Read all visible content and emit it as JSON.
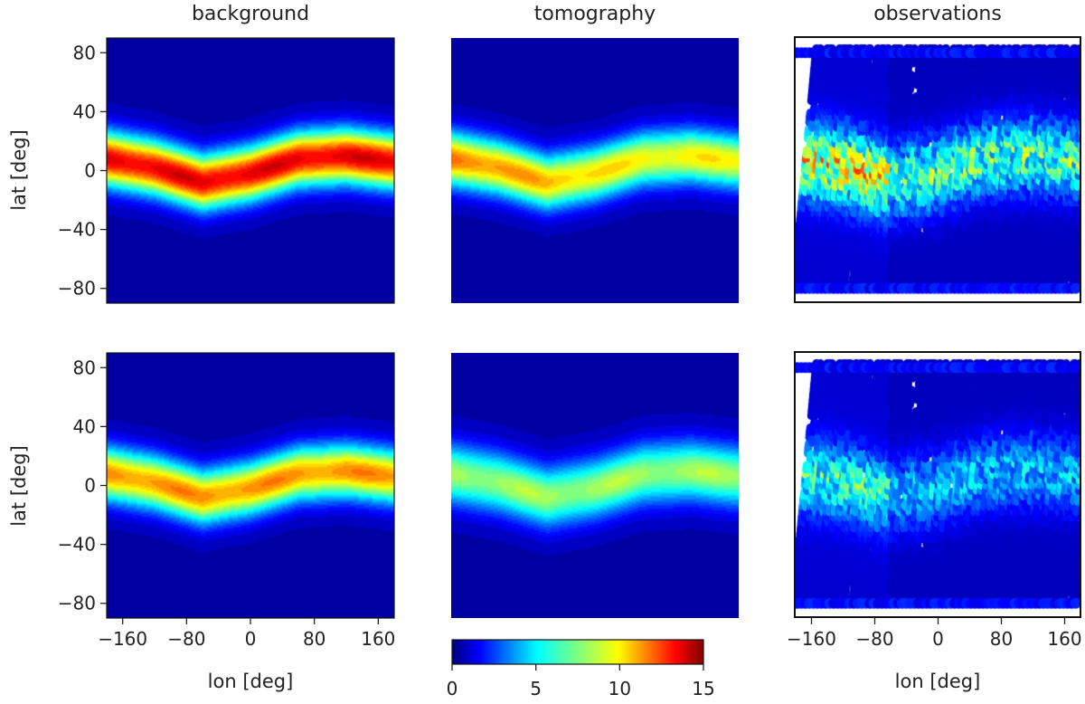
{
  "chart_data": {
    "type": "heatmap",
    "columns": [
      "background",
      "tomography",
      "observations"
    ],
    "rows": 2,
    "xlabel": "lon [deg]",
    "ylabel": "lat [deg]",
    "xlim": [
      -180,
      180
    ],
    "ylim": [
      -90,
      90
    ],
    "xticks": [
      -160,
      -80,
      0,
      80,
      160
    ],
    "yticks": [
      80,
      40,
      0,
      -40,
      -80
    ],
    "xtick_labels": [
      "−160",
      "−80",
      "0",
      "80",
      "160"
    ],
    "ytick_labels": [
      "80",
      "40",
      "0",
      "−40",
      "−80"
    ],
    "colormap": "jet",
    "colorbar": {
      "range": [
        0,
        15
      ],
      "ticks": [
        0,
        5,
        10,
        15
      ],
      "tick_labels": [
        "0",
        "5",
        "10",
        "15"
      ]
    },
    "band_center_lat": {
      "lon": [
        -180,
        -120,
        -60,
        0,
        60,
        120,
        180
      ],
      "lat": [
        8,
        2,
        -8,
        -2,
        8,
        10,
        6
      ]
    },
    "panels": [
      {
        "row": 1,
        "column": "background",
        "peak": 13.5,
        "band_width_deg": 36,
        "background_level": 0.6
      },
      {
        "row": 1,
        "column": "tomography",
        "peak": 11.5,
        "band_width_deg": 36,
        "background_level": 0.6,
        "east_peak": 9.5
      },
      {
        "row": 1,
        "column": "observations",
        "peak": 12.5,
        "lat_coverage": [
          -80,
          80
        ],
        "type": "scatter-swaths"
      },
      {
        "row": 2,
        "column": "background",
        "peak": 11.0,
        "band_width_deg": 36,
        "background_level": 0.6
      },
      {
        "row": 2,
        "column": "tomography",
        "peak": 8.0,
        "band_width_deg": 40,
        "background_level": 0.6
      },
      {
        "row": 2,
        "column": "observations",
        "peak": 8.5,
        "lat_coverage": [
          -80,
          80
        ],
        "type": "scatter-swaths"
      }
    ]
  }
}
